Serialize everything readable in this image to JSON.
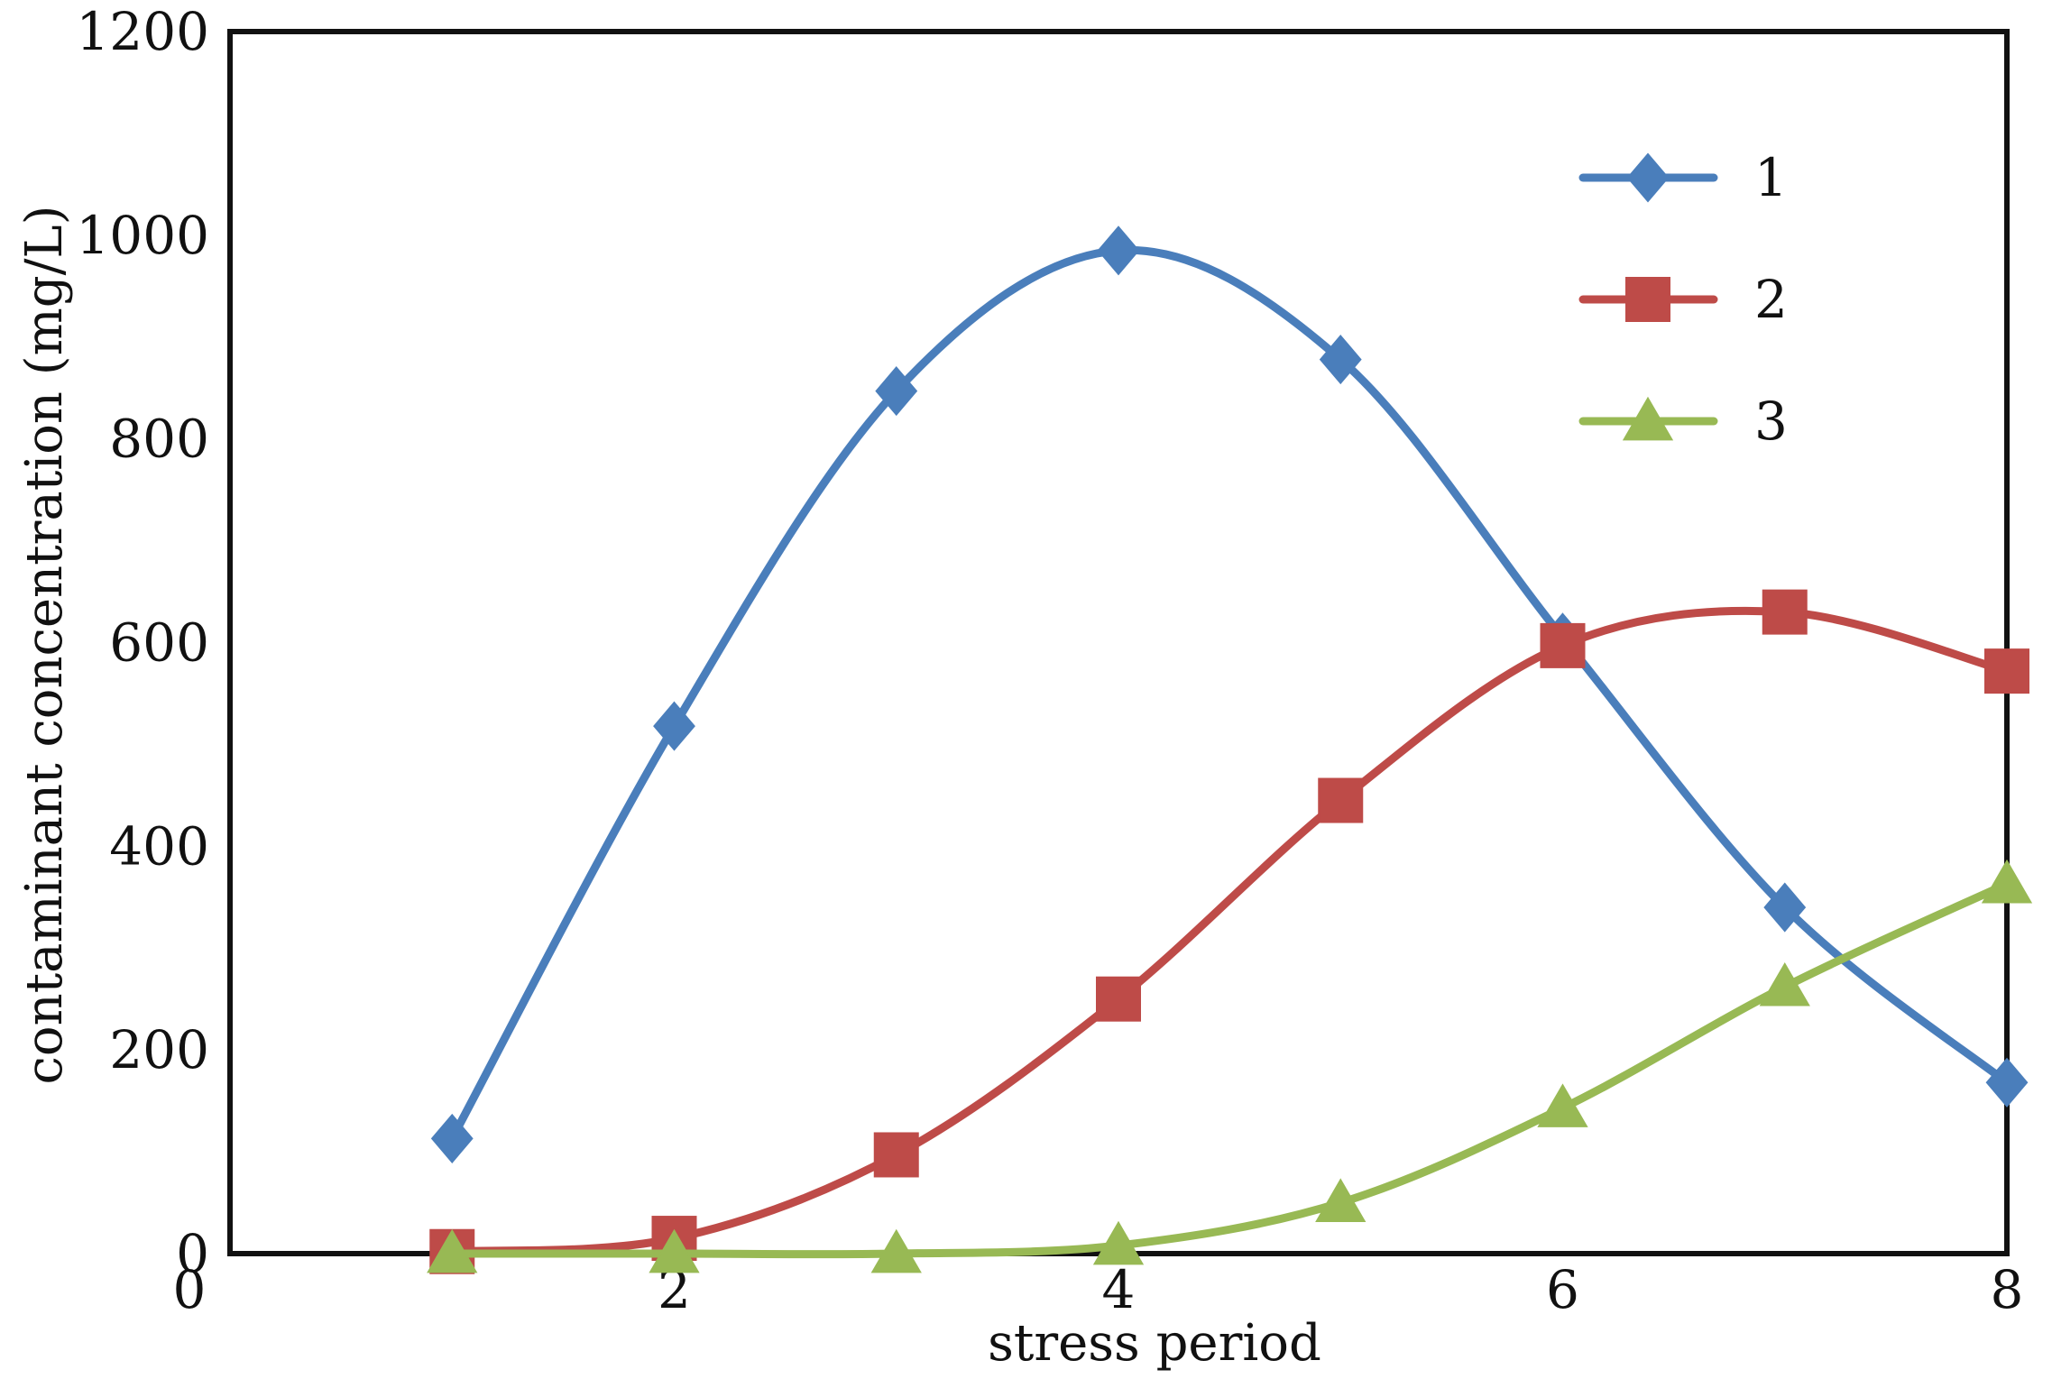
{
  "chart_data": {
    "type": "line",
    "title": "",
    "xlabel": "stress period",
    "ylabel": "contaminant concentration (mg/L)",
    "xlim": [
      0,
      8
    ],
    "ylim": [
      0,
      1200
    ],
    "xticks": [
      2,
      4,
      6,
      8
    ],
    "yticks": [
      0,
      200,
      400,
      600,
      800,
      1000,
      1200
    ],
    "origin_label": "0",
    "grid": false,
    "legend_position": "top-right",
    "smooth": true,
    "series": [
      {
        "name": "1",
        "color": "#4a7ebb",
        "marker": "diamond",
        "x": [
          1,
          2,
          3,
          4,
          5,
          6,
          7,
          8
        ],
        "y": [
          113,
          518,
          847,
          985,
          878,
          605,
          340,
          168
        ]
      },
      {
        "name": "2",
        "color": "#be4b48",
        "marker": "square",
        "x": [
          1,
          2,
          3,
          4,
          5,
          6,
          7,
          8
        ],
        "y": [
          2,
          15,
          97,
          250,
          445,
          597,
          630,
          572
        ]
      },
      {
        "name": "3",
        "color": "#98b954",
        "marker": "triangle",
        "x": [
          1,
          2,
          3,
          4,
          5,
          6,
          7,
          8
        ],
        "y": [
          0,
          0,
          0,
          8,
          50,
          143,
          262,
          363
        ]
      }
    ]
  }
}
